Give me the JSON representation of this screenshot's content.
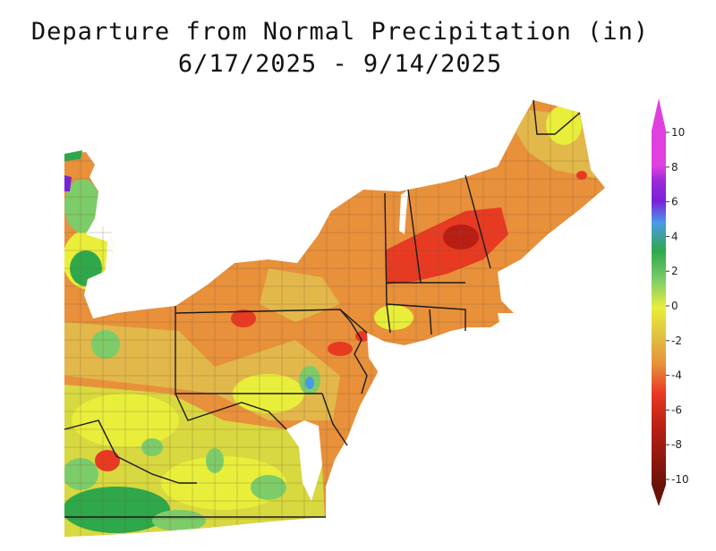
{
  "title": {
    "line1": "Departure from Normal Precipitation (in)",
    "line2": "6/17/2025 - 9/14/2025"
  },
  "legend": {
    "labels": [
      "10",
      "8",
      "6",
      "4",
      "2",
      "0",
      "-2",
      "-4",
      "-6",
      "-8",
      "-10"
    ],
    "colors": {
      "band_8_10": "#e040e0",
      "band_6_8": "#7a20d8",
      "band_4_6": "#4a9ae8",
      "band_2_4": "#2ea84a",
      "band_0_2": "#7ccc6a",
      "band_m2_0": "#e8ee3a",
      "band_m4_m2": "#e2c040",
      "band_m6_m4": "#e8903a",
      "band_m8_m6": "#e83a22",
      "band_m10_m8": "#b81e14",
      "below_m10": "#6a1208"
    }
  },
  "map": {
    "region_colors": {
      "water": "#ffffff",
      "orange": "#e8903a",
      "gold": "#e2b84a",
      "yellow": "#e8ee3a",
      "light_green": "#7ccc6a",
      "green": "#2ea84a",
      "red": "#e83a22",
      "dark_red": "#b81e14",
      "purple": "#7a20d8",
      "state_line": "#1a1a1a",
      "county_line": "#7a5a3a"
    }
  }
}
